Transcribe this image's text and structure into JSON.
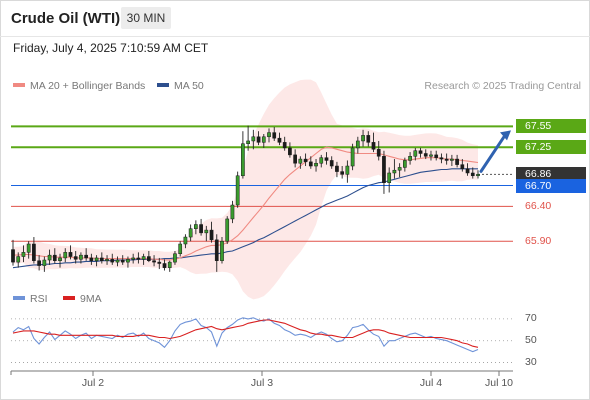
{
  "header": {
    "title": "Crude Oil (WTI)",
    "timeframe": "30 MIN",
    "timestamp": "Friday, July 4, 2025 7:10:59 AM CET"
  },
  "legend": {
    "ma20_bb": "MA 20 + Bollinger Bands",
    "ma50": "MA 50",
    "research": "Research © 2025 Trading Central",
    "colors": {
      "ma20": "#f08a82",
      "ma50": "#2d4f8e",
      "bollinger_fill": "#fde6e4"
    }
  },
  "rsi_legend": {
    "rsi": "RSI",
    "ma9": "9MA",
    "colors": {
      "rsi": "#6f93d8",
      "ma9": "#d92121"
    }
  },
  "chart_data": [
    {
      "type": "candlestick",
      "title": "Crude Oil (WTI)",
      "x_ticks": [
        "Jul 2",
        "Jul 3",
        "Jul 4",
        "Jul 10"
      ],
      "ylim": [
        65.3,
        68.0
      ],
      "levels": [
        {
          "label": "67.55",
          "value": 67.55,
          "kind": "resistance",
          "color": "#5aa816"
        },
        {
          "label": "67.25",
          "value": 67.25,
          "kind": "resistance",
          "color": "#5aa816"
        },
        {
          "label": "66.86",
          "value": 66.86,
          "kind": "last",
          "color": "#333333"
        },
        {
          "label": "66.70",
          "value": 66.7,
          "kind": "pivot",
          "color": "#1a63e0"
        },
        {
          "label": "66.40",
          "value": 66.4,
          "kind": "support",
          "color": "#e0524a"
        },
        {
          "label": "65.90",
          "value": 65.9,
          "kind": "support",
          "color": "#e0524a"
        }
      ],
      "candles": [
        [
          65.78,
          65.92,
          65.55,
          65.6
        ],
        [
          65.6,
          65.74,
          65.52,
          65.68
        ],
        [
          65.68,
          65.84,
          65.6,
          65.74
        ],
        [
          65.74,
          65.9,
          65.65,
          65.86
        ],
        [
          65.86,
          65.96,
          65.58,
          65.62
        ],
        [
          65.62,
          65.7,
          65.48,
          65.55
        ],
        [
          65.55,
          65.68,
          65.46,
          65.63
        ],
        [
          65.63,
          65.78,
          65.56,
          65.7
        ],
        [
          65.7,
          65.8,
          65.58,
          65.62
        ],
        [
          65.62,
          65.72,
          65.52,
          65.66
        ],
        [
          65.66,
          65.8,
          65.6,
          65.74
        ],
        [
          65.74,
          65.84,
          65.64,
          65.68
        ],
        [
          65.68,
          65.76,
          65.58,
          65.64
        ],
        [
          65.64,
          65.74,
          65.58,
          65.7
        ],
        [
          65.7,
          65.8,
          65.62,
          65.66
        ],
        [
          65.66,
          65.72,
          65.56,
          65.62
        ],
        [
          65.62,
          65.7,
          65.54,
          65.66
        ],
        [
          65.66,
          65.74,
          65.58,
          65.62
        ],
        [
          65.62,
          65.7,
          65.56,
          65.64
        ],
        [
          65.64,
          65.72,
          65.56,
          65.6
        ],
        [
          65.6,
          65.68,
          65.54,
          65.63
        ],
        [
          65.63,
          65.7,
          65.56,
          65.6
        ],
        [
          65.6,
          65.68,
          65.52,
          65.64
        ],
        [
          65.64,
          65.72,
          65.58,
          65.66
        ],
        [
          65.66,
          65.74,
          65.58,
          65.64
        ],
        [
          65.64,
          65.72,
          65.56,
          65.68
        ],
        [
          65.68,
          65.76,
          65.6,
          65.62
        ],
        [
          65.62,
          65.7,
          65.54,
          65.6
        ],
        [
          65.6,
          65.66,
          65.5,
          65.58
        ],
        [
          65.58,
          65.64,
          65.48,
          65.52
        ],
        [
          65.52,
          65.62,
          65.46,
          65.6
        ],
        [
          65.6,
          65.76,
          65.56,
          65.72
        ],
        [
          65.72,
          65.9,
          65.68,
          65.86
        ],
        [
          65.86,
          66.0,
          65.8,
          65.96
        ],
        [
          65.96,
          66.14,
          65.9,
          66.08
        ],
        [
          66.08,
          66.2,
          66.0,
          66.14
        ],
        [
          66.14,
          66.22,
          65.98,
          66.02
        ],
        [
          66.02,
          66.12,
          65.9,
          66.06
        ],
        [
          66.06,
          66.18,
          65.88,
          65.92
        ],
        [
          65.92,
          66.0,
          65.46,
          65.62
        ],
        [
          65.62,
          65.96,
          65.58,
          65.9
        ],
        [
          65.9,
          66.26,
          65.86,
          66.22
        ],
        [
          66.22,
          66.48,
          66.16,
          66.42
        ],
        [
          66.42,
          66.9,
          66.38,
          66.84
        ],
        [
          66.84,
          67.48,
          66.8,
          67.3
        ],
        [
          67.3,
          67.56,
          67.2,
          67.34
        ],
        [
          67.34,
          67.5,
          67.22,
          67.4
        ],
        [
          67.4,
          67.48,
          67.28,
          67.32
        ],
        [
          67.32,
          67.44,
          67.24,
          67.4
        ],
        [
          67.4,
          67.52,
          67.32,
          67.46
        ],
        [
          67.46,
          67.54,
          67.34,
          67.38
        ],
        [
          67.38,
          67.46,
          67.28,
          67.32
        ],
        [
          67.32,
          67.4,
          67.2,
          67.24
        ],
        [
          67.24,
          67.32,
          67.1,
          67.14
        ],
        [
          67.14,
          67.22,
          66.96,
          67.02
        ],
        [
          67.02,
          67.12,
          66.94,
          67.08
        ],
        [
          67.08,
          67.16,
          66.98,
          67.04
        ],
        [
          67.04,
          67.12,
          66.94,
          66.98
        ],
        [
          66.98,
          67.08,
          66.9,
          67.02
        ],
        [
          67.02,
          67.14,
          66.96,
          67.1
        ],
        [
          67.1,
          67.18,
          67.0,
          67.06
        ],
        [
          67.06,
          67.12,
          66.94,
          66.98
        ],
        [
          66.98,
          67.04,
          66.82,
          66.9
        ],
        [
          66.9,
          66.98,
          66.8,
          66.86
        ],
        [
          66.86,
          67.06,
          66.74,
          66.98
        ],
        [
          66.98,
          67.3,
          66.92,
          67.24
        ],
        [
          67.24,
          67.4,
          67.16,
          67.34
        ],
        [
          67.34,
          67.5,
          67.26,
          67.42
        ],
        [
          67.42,
          67.48,
          67.26,
          67.32
        ],
        [
          67.32,
          67.46,
          67.18,
          67.22
        ],
        [
          67.22,
          67.34,
          67.06,
          67.12
        ],
        [
          67.12,
          67.2,
          66.58,
          66.74
        ],
        [
          66.74,
          66.96,
          66.6,
          66.88
        ],
        [
          66.88,
          67.08,
          66.8,
          66.92
        ],
        [
          66.92,
          67.02,
          66.82,
          66.96
        ],
        [
          66.96,
          67.1,
          66.9,
          67.06
        ],
        [
          67.06,
          67.18,
          67.0,
          67.12
        ],
        [
          67.12,
          67.24,
          67.06,
          67.2
        ],
        [
          67.2,
          67.24,
          67.1,
          67.16
        ],
        [
          67.16,
          67.22,
          67.08,
          67.12
        ],
        [
          67.12,
          67.2,
          67.06,
          67.14
        ],
        [
          67.14,
          67.2,
          67.06,
          67.1
        ],
        [
          67.1,
          67.16,
          67.02,
          67.08
        ],
        [
          67.08,
          67.16,
          67.0,
          67.06
        ],
        [
          67.06,
          67.14,
          66.98,
          67.08
        ],
        [
          67.08,
          67.14,
          66.96,
          67.0
        ],
        [
          67.0,
          67.08,
          66.9,
          66.94
        ],
        [
          66.94,
          67.02,
          66.84,
          66.88
        ],
        [
          66.88,
          66.96,
          66.8,
          66.84
        ],
        [
          66.84,
          66.92,
          66.8,
          66.86
        ]
      ],
      "series": [
        {
          "name": "MA 20",
          "values": [
            65.7,
            65.7,
            65.71,
            65.71,
            65.7,
            65.69,
            65.68,
            65.68,
            65.67,
            65.67,
            65.67,
            65.67,
            65.66,
            65.66,
            65.66,
            65.66,
            65.65,
            65.65,
            65.65,
            65.65,
            65.65,
            65.65,
            65.65,
            65.65,
            65.65,
            65.65,
            65.65,
            65.64,
            65.64,
            65.63,
            65.63,
            65.64,
            65.66,
            65.69,
            65.72,
            65.76,
            65.79,
            65.82,
            65.84,
            65.84,
            65.85,
            65.88,
            65.92,
            65.98,
            66.06,
            66.15,
            66.24,
            66.33,
            66.42,
            66.52,
            66.61,
            66.7,
            66.79,
            66.86,
            66.92,
            66.98,
            67.04,
            67.1,
            67.16,
            67.22,
            67.25,
            67.24,
            67.22,
            67.2,
            67.18,
            67.17,
            67.16,
            67.16,
            67.16,
            67.16,
            67.16,
            67.14,
            67.12,
            67.1,
            67.08,
            67.07,
            67.07,
            67.08,
            67.09,
            67.1,
            67.1,
            67.1,
            67.09,
            67.08,
            67.08,
            67.07,
            67.06,
            67.05,
            67.04,
            67.03
          ]
        },
        {
          "name": "MA 50",
          "values": [
            65.52,
            65.53,
            65.54,
            65.55,
            65.56,
            65.56,
            65.57,
            65.57,
            65.58,
            65.58,
            65.59,
            65.59,
            65.6,
            65.6,
            65.61,
            65.61,
            65.61,
            65.62,
            65.62,
            65.62,
            65.63,
            65.63,
            65.63,
            65.63,
            65.64,
            65.64,
            65.64,
            65.64,
            65.64,
            65.65,
            65.65,
            65.66,
            65.66,
            65.67,
            65.68,
            65.69,
            65.7,
            65.71,
            65.72,
            65.72,
            65.73,
            65.75,
            65.76,
            65.79,
            65.82,
            65.85,
            65.88,
            65.92,
            65.95,
            65.99,
            66.03,
            66.07,
            66.11,
            66.15,
            66.19,
            66.23,
            66.27,
            66.31,
            66.35,
            66.39,
            66.43,
            66.46,
            66.49,
            66.52,
            66.55,
            66.59,
            66.63,
            66.67,
            66.7,
            66.72,
            66.74,
            66.75,
            66.77,
            66.79,
            66.81,
            66.83,
            66.85,
            66.87,
            66.89,
            66.9,
            66.91,
            66.92,
            66.93,
            66.93,
            66.94,
            66.94,
            66.94,
            66.94,
            66.94,
            66.94
          ]
        }
      ]
    },
    {
      "type": "line",
      "title": "RSI",
      "ylim": [
        25,
        80
      ],
      "y_ticks": [
        70,
        50,
        30
      ],
      "series": [
        {
          "name": "RSI",
          "values": [
            58,
            62,
            60,
            63,
            52,
            47,
            53,
            58,
            51,
            55,
            59,
            56,
            52,
            55,
            57,
            52,
            55,
            54,
            53,
            52,
            55,
            53,
            56,
            57,
            54,
            57,
            52,
            50,
            48,
            44,
            50,
            59,
            65,
            67,
            68,
            70,
            64,
            62,
            58,
            45,
            57,
            62,
            65,
            69,
            71,
            70,
            71,
            69,
            68,
            70,
            66,
            64,
            60,
            58,
            55,
            56,
            55,
            53,
            56,
            58,
            56,
            52,
            49,
            50,
            55,
            62,
            63,
            65,
            60,
            56,
            54,
            45,
            50,
            50,
            52,
            54,
            56,
            57,
            55,
            53,
            54,
            52,
            51,
            50,
            48,
            46,
            44,
            42,
            40,
            42
          ]
        },
        {
          "name": "9MA",
          "values": [
            57,
            58,
            59,
            59,
            59,
            58,
            57,
            56,
            56,
            55,
            55,
            55,
            55,
            55,
            55,
            55,
            55,
            55,
            55,
            55,
            54,
            54,
            54,
            54,
            55,
            55,
            55,
            54,
            53,
            53,
            52,
            53,
            54,
            56,
            58,
            60,
            61,
            62,
            63,
            61,
            60,
            61,
            62,
            63,
            64,
            66,
            67,
            68,
            69,
            69,
            68,
            67,
            66,
            64,
            62,
            60,
            59,
            57,
            56,
            56,
            55,
            55,
            54,
            53,
            53,
            53,
            55,
            57,
            59,
            60,
            60,
            59,
            57,
            56,
            55,
            54,
            53,
            53,
            53,
            53,
            53,
            53,
            53,
            52,
            51,
            50,
            48,
            47,
            45,
            44
          ]
        }
      ]
    }
  ]
}
